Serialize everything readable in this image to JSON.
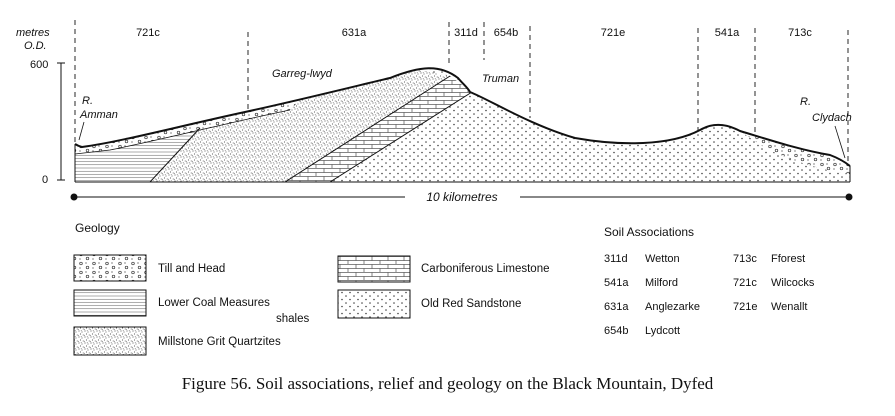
{
  "axis": {
    "unit_line1": "metres",
    "unit_line2": "O.D.",
    "tick_600": "600",
    "tick_0": "0"
  },
  "profile": {
    "soil_codes": [
      "721c",
      "631a",
      "311d",
      "654b",
      "721e",
      "541a",
      "713c"
    ],
    "places": {
      "garreg": "Garreg-lwyd",
      "truman": "Truman",
      "amman_1": "R.",
      "amman_2": "Amman",
      "clydach_1": "R.",
      "clydach_2": "Clydach"
    },
    "scale_label": "10 kilometres"
  },
  "geology": {
    "heading": "Geology",
    "items": [
      {
        "label": "Till and Head",
        "pattern": "till"
      },
      {
        "label": "Lower Coal Measures",
        "label2": "shales",
        "pattern": "coal"
      },
      {
        "label": "Millstone Grit Quartzites",
        "pattern": "grit"
      },
      {
        "label": "Carboniferous Limestone",
        "pattern": "limestone"
      },
      {
        "label": "Old Red Sandstone",
        "pattern": "sandstone"
      }
    ]
  },
  "soils": {
    "heading": "Soil Associations",
    "col1": [
      {
        "code": "311d",
        "name": "Wetton"
      },
      {
        "code": "541a",
        "name": "Milford"
      },
      {
        "code": "631a",
        "name": "Anglezarke"
      },
      {
        "code": "654b",
        "name": "Lydcott"
      }
    ],
    "col2": [
      {
        "code": "713c",
        "name": "Fforest"
      },
      {
        "code": "721c",
        "name": "Wilcocks"
      },
      {
        "code": "721e",
        "name": "Wenallt"
      }
    ]
  },
  "caption": "Figure 56. Soil associations, relief and geology on the Black Mountain, Dyfed"
}
